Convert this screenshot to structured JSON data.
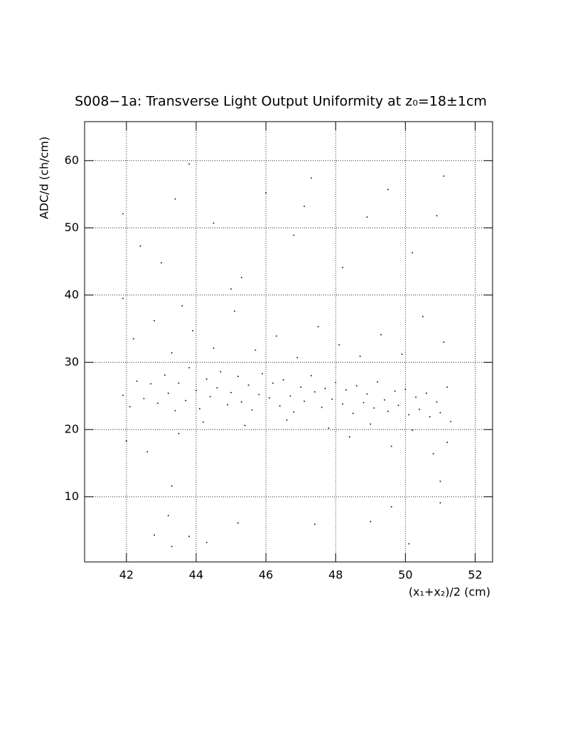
{
  "chart_data": {
    "type": "scatter",
    "title": "S008−1a: Transverse Light Output Uniformity at z₀=18±1cm",
    "x_label": "(x₁+x₂)/2 (cm)",
    "y_label": "ADC/d (ch/cm)",
    "xlim": [
      40.8,
      52.5
    ],
    "ylim": [
      0.3,
      65.8
    ],
    "xticks": [
      42,
      44,
      46,
      48,
      50,
      52
    ],
    "yticks": [
      10,
      20,
      30,
      40,
      50,
      60
    ],
    "grid": true,
    "color": "#000000",
    "x": [
      41.9,
      42.1,
      42.3,
      42.5,
      42.7,
      42.9,
      43.1,
      43.2,
      43.4,
      43.5,
      43.7,
      43.8,
      44.0,
      44.1,
      44.3,
      44.4,
      44.6,
      44.7,
      44.9,
      45.0,
      45.2,
      45.3,
      45.5,
      45.6,
      45.8,
      45.9,
      46.1,
      46.2,
      46.4,
      46.5,
      46.7,
      46.8,
      47.0,
      47.1,
      47.3,
      47.4,
      47.6,
      47.7,
      47.9,
      48.0,
      48.2,
      48.3,
      48.5,
      48.6,
      48.8,
      48.9,
      49.1,
      49.2,
      49.4,
      49.5,
      49.7,
      49.8,
      50.0,
      50.1,
      50.3,
      50.4,
      50.6,
      50.7,
      50.9,
      51.0,
      51.2,
      51.3,
      42.2,
      42.8,
      43.3,
      43.9,
      44.5,
      45.1,
      45.7,
      46.3,
      46.9,
      47.5,
      48.1,
      48.7,
      49.3,
      49.9,
      50.5,
      51.1,
      41.9,
      43.6,
      42.0,
      42.6,
      43.5,
      44.2,
      45.4,
      46.6,
      47.8,
      48.4,
      49.0,
      49.6,
      50.2,
      50.8,
      51.2,
      51.0,
      41.9,
      42.4,
      43.0,
      43.8,
      44.5,
      45.3,
      46.0,
      46.8,
      47.3,
      48.2,
      48.9,
      49.5,
      50.2,
      50.9,
      51.1,
      43.4,
      47.1,
      45.0,
      42.8,
      43.2,
      43.8,
      45.2,
      47.4,
      49.0,
      50.1,
      43.3,
      44.3,
      49.6,
      51.0,
      43.3
    ],
    "y": [
      25.1,
      23.4,
      27.2,
      24.6,
      26.8,
      23.9,
      28.1,
      25.4,
      22.8,
      26.9,
      24.3,
      29.2,
      25.8,
      23.1,
      27.5,
      24.9,
      26.2,
      28.6,
      23.7,
      25.5,
      27.9,
      24.1,
      26.6,
      22.9,
      25.2,
      28.3,
      24.7,
      26.9,
      23.5,
      27.4,
      25.0,
      22.6,
      26.3,
      24.2,
      28.0,
      25.6,
      23.3,
      26.1,
      24.5,
      27.0,
      23.8,
      25.9,
      22.4,
      26.5,
      24.0,
      25.3,
      23.2,
      27.1,
      24.4,
      22.7,
      25.7,
      23.6,
      26.0,
      22.2,
      24.8,
      23.0,
      25.4,
      21.9,
      24.1,
      22.5,
      26.3,
      21.2,
      33.5,
      36.2,
      31.4,
      34.7,
      32.1,
      37.6,
      31.8,
      33.9,
      30.7,
      35.3,
      32.6,
      30.9,
      34.1,
      31.2,
      36.8,
      33.0,
      39.5,
      38.4,
      18.3,
      16.7,
      19.4,
      21.1,
      20.6,
      21.4,
      20.2,
      18.9,
      20.8,
      17.5,
      19.9,
      16.4,
      18.1,
      12.3,
      52.1,
      47.3,
      44.8,
      59.5,
      50.7,
      42.6,
      55.2,
      48.9,
      57.4,
      44.1,
      51.6,
      55.7,
      46.3,
      51.8,
      57.7,
      54.3,
      53.2,
      40.9,
      4.3,
      7.2,
      4.1,
      6.1,
      5.9,
      6.3,
      3.0,
      2.6,
      3.2,
      8.5,
      9.1,
      11.6
    ]
  }
}
